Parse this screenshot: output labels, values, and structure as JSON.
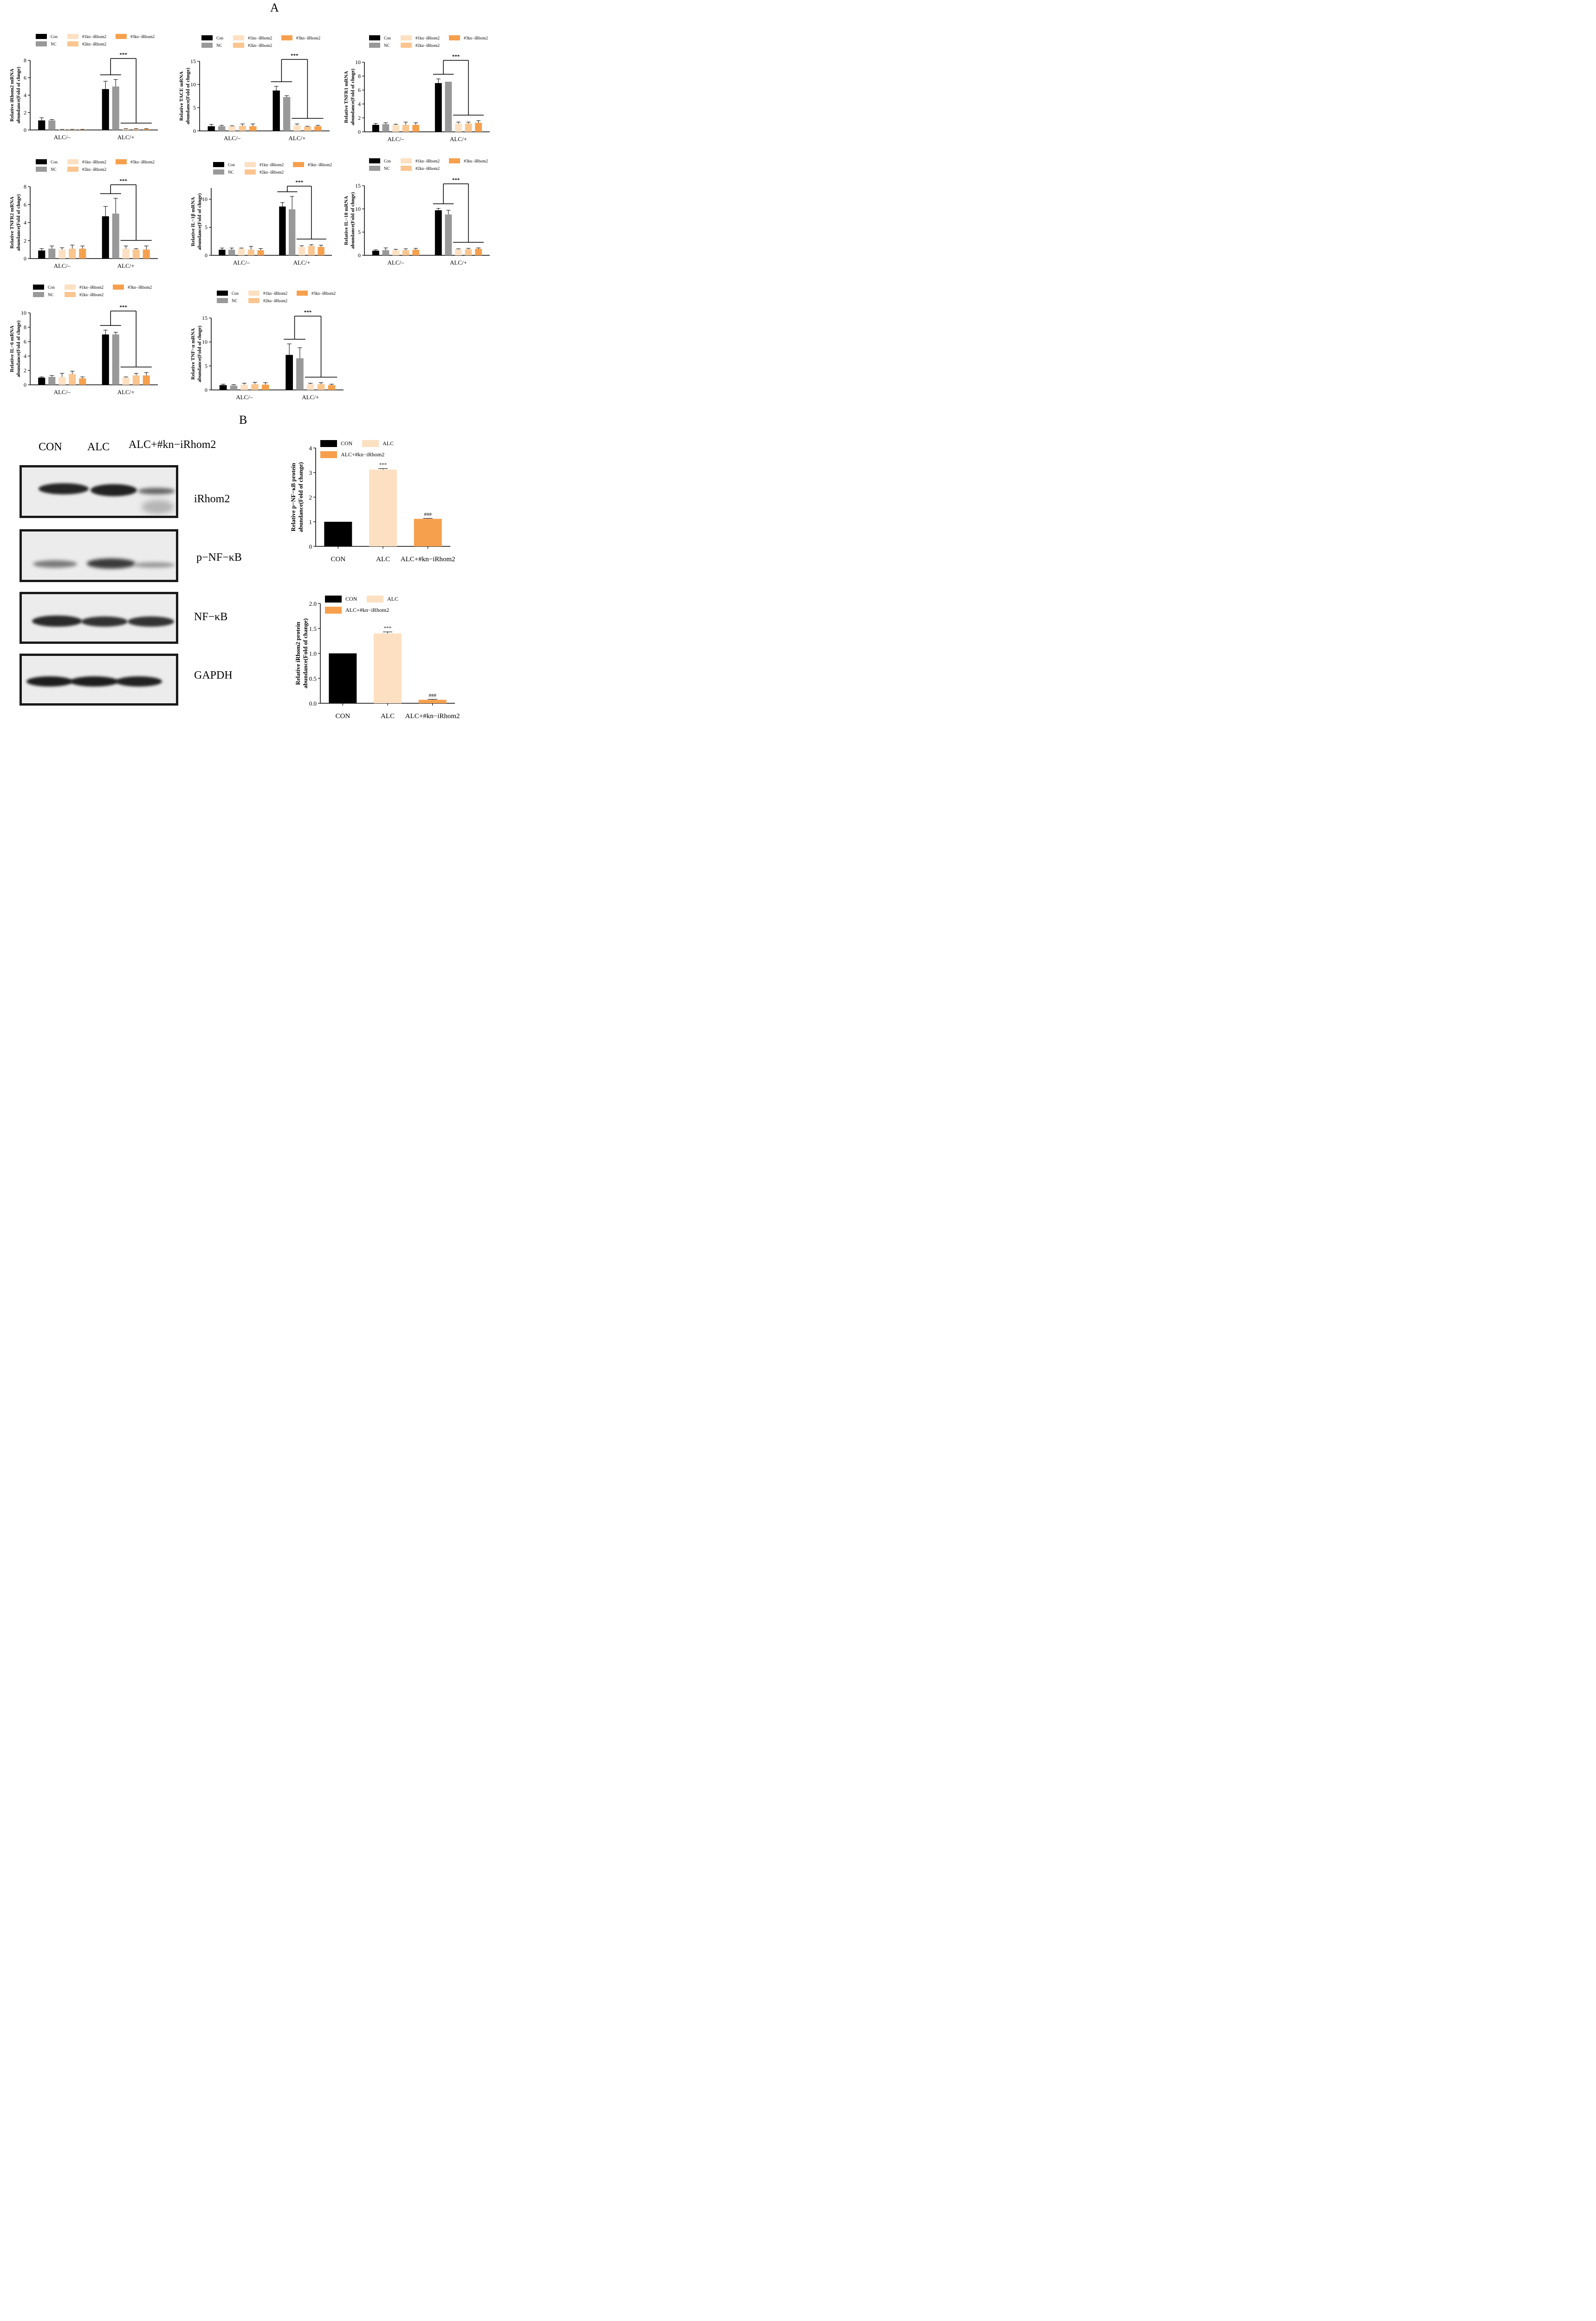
{
  "panel_labels": {
    "a": "A",
    "b": "B"
  },
  "colors": {
    "Con": "#000000",
    "NC": "#999999",
    "#1kn-iRhom2": "#fde0c2",
    "#2kn-iRhom2": "#fbc58f",
    "#3kn-iRhom2": "#f6a04d",
    "CON": "#000000",
    "ALC": "#fde0c2",
    "ALC+#kn-iRhom2": "#f6a04d"
  },
  "western_blot": {
    "lane_labels": [
      "CON",
      "ALC",
      "ALC+#kn−iRhom2"
    ],
    "blot_labels": [
      "iRhom2",
      "p−NF−κB",
      "NF−κB",
      "GAPDH"
    ]
  },
  "chart_data": [
    {
      "type": "bar",
      "ylabel": [
        "Relative iRhom2 mRNA",
        "abundance(Fold of chnge)"
      ],
      "categories": [
        "ALC/–",
        "ALC/+"
      ],
      "legend": [
        "Con",
        "NC",
        "#1kn−iRhom2",
        "#2kn−iRhom2",
        "#3kn−iRhom2"
      ],
      "ylim": [
        0,
        8
      ],
      "yticks": [
        0,
        2,
        4,
        6,
        8
      ],
      "series": [
        {
          "name": "Con",
          "values": [
            1.1,
            4.7
          ],
          "errors": [
            0.3,
            0.9
          ]
        },
        {
          "name": "NC",
          "values": [
            1.1,
            5.0
          ],
          "errors": [
            0.1,
            0.8
          ]
        },
        {
          "name": "#1kn−iRhom2",
          "values": [
            0.05,
            0.1
          ],
          "errors": [
            0.02,
            0.05
          ]
        },
        {
          "name": "#2kn−iRhom2",
          "values": [
            0.05,
            0.1
          ],
          "errors": [
            0.02,
            0.05
          ]
        },
        {
          "name": "#3kn−iRhom2",
          "values": [
            0.05,
            0.1
          ],
          "errors": [
            0.02,
            0.05
          ]
        }
      ],
      "significance": "***"
    },
    {
      "type": "bar",
      "ylabel": [
        "Relative TACE mRNA",
        "abundance(Fold of chnge)"
      ],
      "categories": [
        "ALC/–",
        "ALC/+"
      ],
      "legend": [
        "Con",
        "NC",
        "#1kn−iRhom2",
        "#2kn−iRhom2",
        "#3kn−iRhom2"
      ],
      "ylim": [
        0,
        15
      ],
      "yticks": [
        0,
        5,
        10,
        15
      ],
      "series": [
        {
          "name": "Con",
          "values": [
            1.0,
            8.7
          ],
          "errors": [
            0.4,
            0.9
          ]
        },
        {
          "name": "NC",
          "values": [
            1.0,
            7.3
          ],
          "errors": [
            0.2,
            0.3
          ]
        },
        {
          "name": "#1kn−iRhom2",
          "values": [
            1.0,
            1.2
          ],
          "errors": [
            0.1,
            0.3
          ]
        },
        {
          "name": "#2kn−iRhom2",
          "values": [
            1.1,
            0.9
          ],
          "errors": [
            0.4,
            0.1
          ]
        },
        {
          "name": "#3kn−iRhom2",
          "values": [
            1.0,
            1.0
          ],
          "errors": [
            0.5,
            0.2
          ]
        }
      ],
      "significance": "***"
    },
    {
      "type": "bar",
      "ylabel": [
        "Relative TNFR1 mRNA",
        "abundance(Fold of chnge)"
      ],
      "categories": [
        "ALC/–",
        "ALC/+"
      ],
      "legend": [
        "Con",
        "NC",
        "#1kn−iRhom2",
        "#2kn−iRhom2",
        "#3kn−iRhom2"
      ],
      "ylim": [
        0,
        10
      ],
      "yticks": [
        0,
        2,
        4,
        6,
        8,
        10
      ],
      "series": [
        {
          "name": "Con",
          "values": [
            1.0,
            7.0
          ],
          "errors": [
            0.2,
            0.6
          ]
        },
        {
          "name": "NC",
          "values": [
            1.1,
            7.2
          ],
          "errors": [
            0.2,
            0.0
          ]
        },
        {
          "name": "#1kn−iRhom2",
          "values": [
            1.0,
            1.2
          ],
          "errors": [
            0.1,
            0.2
          ]
        },
        {
          "name": "#2kn−iRhom2",
          "values": [
            1.0,
            1.2
          ],
          "errors": [
            0.4,
            0.2
          ]
        },
        {
          "name": "#3kn−iRhom2",
          "values": [
            1.0,
            1.3
          ],
          "errors": [
            0.3,
            0.3
          ]
        }
      ],
      "significance": "***"
    },
    {
      "type": "bar",
      "ylabel": [
        "Relative TNFR2 mRNA",
        "abundance(Fold of chnge)"
      ],
      "categories": [
        "ALC/–",
        "ALC/+"
      ],
      "legend": [
        "Con",
        "NC",
        "#1kn−iRhom2",
        "#2kn−iRhom2",
        "#3kn−iRhom2"
      ],
      "ylim": [
        0,
        8
      ],
      "yticks": [
        0,
        2,
        4,
        6,
        8
      ],
      "series": [
        {
          "name": "Con",
          "values": [
            0.9,
            4.7
          ],
          "errors": [
            0.2,
            1.1
          ]
        },
        {
          "name": "NC",
          "values": [
            1.1,
            5.0
          ],
          "errors": [
            0.3,
            1.7
          ]
        },
        {
          "name": "#1kn−iRhom2",
          "values": [
            1.0,
            1.1
          ],
          "errors": [
            0.2,
            0.3
          ]
        },
        {
          "name": "#2kn−iRhom2",
          "values": [
            1.1,
            1.0
          ],
          "errors": [
            0.4,
            0.1
          ]
        },
        {
          "name": "#3kn−iRhom2",
          "values": [
            1.1,
            1.0
          ],
          "errors": [
            0.3,
            0.4
          ]
        }
      ],
      "significance": "***"
    },
    {
      "type": "bar",
      "ylabel": [
        "Relative IL−1β mRNA",
        "abundance(Fold of chnge)"
      ],
      "categories": [
        "ALC/–",
        "ALC/+"
      ],
      "legend": [
        "Con",
        "NC",
        "#1kn−iRhom2",
        "#2kn−iRhom2",
        "#3kn−iRhom2"
      ],
      "ylim": [
        0,
        12
      ],
      "yticks": [
        0,
        5,
        10
      ],
      "series": [
        {
          "name": "Con",
          "values": [
            1.0,
            8.7
          ],
          "errors": [
            0.3,
            0.7
          ]
        },
        {
          "name": "NC",
          "values": [
            1.0,
            8.2
          ],
          "errors": [
            0.3,
            2.3
          ]
        },
        {
          "name": "#1kn−iRhom2",
          "values": [
            1.2,
            1.5
          ],
          "errors": [
            0.1,
            0.2
          ]
        },
        {
          "name": "#2kn−iRhom2",
          "values": [
            1.0,
            1.7
          ],
          "errors": [
            0.6,
            0.2
          ]
        },
        {
          "name": "#3kn−iRhom2",
          "values": [
            0.9,
            1.5
          ],
          "errors": [
            0.3,
            0.3
          ]
        }
      ],
      "significance": "***"
    },
    {
      "type": "bar",
      "ylabel": [
        "Relative IL−18 mRNA",
        "abundance(Fold of chnge)"
      ],
      "categories": [
        "ALC/–",
        "ALC/+"
      ],
      "legend": [
        "Con",
        "NC",
        "#1kn−iRhom2",
        "#2kn−iRhom2",
        "#3kn−iRhom2"
      ],
      "ylim": [
        0,
        15
      ],
      "yticks": [
        0,
        5,
        10,
        15
      ],
      "series": [
        {
          "name": "Con",
          "values": [
            1.0,
            9.7
          ],
          "errors": [
            0.2,
            0.4
          ]
        },
        {
          "name": "NC",
          "values": [
            1.1,
            8.8
          ],
          "errors": [
            0.5,
            0.9
          ]
        },
        {
          "name": "#1kn−iRhom2",
          "values": [
            1.1,
            1.3
          ],
          "errors": [
            0.2,
            0.1
          ]
        },
        {
          "name": "#2kn−iRhom2",
          "values": [
            1.1,
            1.3
          ],
          "errors": [
            0.3,
            0.2
          ]
        },
        {
          "name": "#3kn−iRhom2",
          "values": [
            1.2,
            1.4
          ],
          "errors": [
            0.3,
            0.2
          ]
        }
      ],
      "significance": "***"
    },
    {
      "type": "bar",
      "ylabel": [
        "Relative IL−6 mRNA",
        "abundance(Fold of chnge)"
      ],
      "categories": [
        "ALC/–",
        "ALC/+"
      ],
      "legend": [
        "Con",
        "NC",
        "#1kn−iRhom2",
        "#2kn−iRhom2",
        "#3kn−iRhom2"
      ],
      "ylim": [
        0,
        10
      ],
      "yticks": [
        0,
        2,
        4,
        6,
        8,
        10
      ],
      "series": [
        {
          "name": "Con",
          "values": [
            1.0,
            7.0
          ],
          "errors": [
            0.1,
            0.6
          ]
        },
        {
          "name": "NC",
          "values": [
            1.1,
            7.0
          ],
          "errors": [
            0.2,
            0.3
          ]
        },
        {
          "name": "#1kn−iRhom2",
          "values": [
            1.1,
            1.0
          ],
          "errors": [
            0.5,
            0.1
          ]
        },
        {
          "name": "#2kn−iRhom2",
          "values": [
            1.5,
            1.3
          ],
          "errors": [
            0.4,
            0.3
          ]
        },
        {
          "name": "#3kn−iRhom2",
          "values": [
            0.9,
            1.3
          ],
          "errors": [
            0.2,
            0.4
          ]
        }
      ],
      "significance": "***"
    },
    {
      "type": "bar",
      "ylabel": [
        "Relative TNF−α mRNA",
        "abundance(Fold of chnge)"
      ],
      "categories": [
        "ALC/–",
        "ALC/+"
      ],
      "legend": [
        "Con",
        "NC",
        "#1kn−iRhom2",
        "#2kn−iRhom2",
        "#3kn−iRhom2"
      ],
      "ylim": [
        0,
        15
      ],
      "yticks": [
        0,
        5,
        10,
        15
      ],
      "series": [
        {
          "name": "Con",
          "values": [
            1.0,
            7.3
          ],
          "errors": [
            0.2,
            2.3
          ]
        },
        {
          "name": "NC",
          "values": [
            0.9,
            6.6
          ],
          "errors": [
            0.2,
            2.2
          ]
        },
        {
          "name": "#1kn−iRhom2",
          "values": [
            1.1,
            1.2
          ],
          "errors": [
            0.3,
            0.2
          ]
        },
        {
          "name": "#2kn−iRhom2",
          "values": [
            1.2,
            1.2
          ],
          "errors": [
            0.4,
            0.3
          ]
        },
        {
          "name": "#3kn−iRhom2",
          "values": [
            1.1,
            1.0
          ],
          "errors": [
            0.4,
            0.2
          ]
        }
      ],
      "significance": "***"
    },
    {
      "type": "bar",
      "ylabel": [
        "Relative p−NF−κB protein",
        "abundance(Fold of change)"
      ],
      "categories": [
        "CON",
        "ALC",
        "ALC+#kn−iRhom2"
      ],
      "legend": [
        "CON",
        "ALC",
        "ALC+#kn−iRhom2"
      ],
      "ylim": [
        0,
        4
      ],
      "yticks": [
        0,
        1,
        2,
        3,
        4
      ],
      "values": [
        1.0,
        3.12,
        1.12
      ],
      "errors": [
        0,
        0.04,
        0.02
      ],
      "annotations": [
        "",
        "***",
        "###"
      ]
    },
    {
      "type": "bar",
      "ylabel": [
        "Relative iRhom2 protein",
        "abundance(Fold of change)"
      ],
      "categories": [
        "CON",
        "ALC",
        "ALC+#kn−iRhom2"
      ],
      "legend": [
        "CON",
        "ALC",
        "ALC+#kn−iRhom2"
      ],
      "ylim": [
        0,
        2.0
      ],
      "yticks": [
        0.0,
        0.5,
        1.0,
        1.5,
        2.0
      ],
      "values": [
        1.0,
        1.4,
        0.07
      ],
      "errors": [
        0,
        0.03,
        0.01
      ],
      "annotations": [
        "",
        "***",
        "###"
      ]
    }
  ]
}
